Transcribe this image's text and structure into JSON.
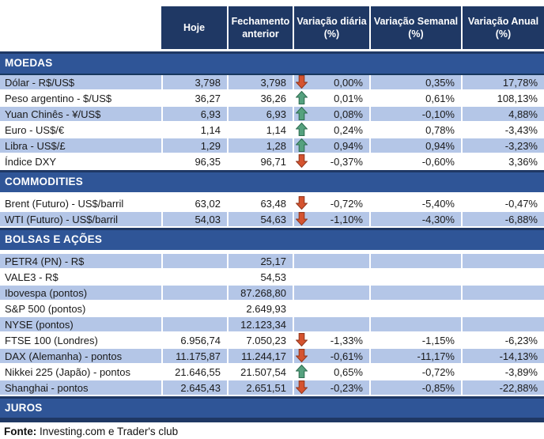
{
  "table": {
    "columns": [
      "Hoje",
      "Fechamento anterior",
      "Variação diária (%)",
      "Variação Semanal (%)",
      "Variação Anual (%)"
    ]
  },
  "colors": {
    "header_bg": "#1F3864",
    "section_band_bg": "#2F5597",
    "shaded_row_bg": "#B4C6E7",
    "up_arrow": "#55A17E",
    "down_arrow": "#D5532F"
  },
  "sections": [
    {
      "title": "MOEDAS",
      "first_row_shaded": true,
      "rows": [
        {
          "label": "Dólar - R$/US$",
          "hoje": "3,798",
          "fechamento": "3,798",
          "trend": "down",
          "diaria": "0,00%",
          "semanal": "0,35%",
          "anual": "17,78%"
        },
        {
          "label": "Peso argentino - $/US$",
          "hoje": "36,27",
          "fechamento": "36,26",
          "trend": "up",
          "diaria": "0,01%",
          "semanal": "0,61%",
          "anual": "108,13%"
        },
        {
          "label": "Yuan Chinês - ¥/US$",
          "hoje": "6,93",
          "fechamento": "6,93",
          "trend": "up",
          "diaria": "0,08%",
          "semanal": "-0,10%",
          "anual": "4,88%"
        },
        {
          "label": "Euro - US$/€",
          "hoje": "1,14",
          "fechamento": "1,14",
          "trend": "up",
          "diaria": "0,24%",
          "semanal": "0,78%",
          "anual": "-3,43%"
        },
        {
          "label": "Libra - US$/£",
          "hoje": "1,29",
          "fechamento": "1,28",
          "trend": "up",
          "diaria": "0,94%",
          "semanal": "0,94%",
          "anual": "-3,23%"
        },
        {
          "label": "Índice DXY",
          "hoje": "96,35",
          "fechamento": "96,71",
          "trend": "down",
          "diaria": "-0,37%",
          "semanal": "-0,60%",
          "anual": "3,36%"
        }
      ]
    },
    {
      "title": "COMMODITIES",
      "first_row_shaded": false,
      "rows": [
        {
          "label": "Brent (Futuro) - US$/barril",
          "hoje": "63,02",
          "fechamento": "63,48",
          "trend": "down",
          "diaria": "-0,72%",
          "semanal": "-5,40%",
          "anual": "-0,47%"
        },
        {
          "label": "WTI (Futuro) - US$/barril",
          "hoje": "54,03",
          "fechamento": "54,63",
          "trend": "down",
          "diaria": "-1,10%",
          "semanal": "-4,30%",
          "anual": "-6,88%"
        }
      ]
    },
    {
      "title": "BOLSAS E AÇÕES",
      "first_row_shaded": true,
      "rows": [
        {
          "label": "PETR4 (PN) - R$",
          "hoje": "",
          "fechamento": "25,17",
          "trend": "",
          "diaria": "",
          "semanal": "",
          "anual": ""
        },
        {
          "label": "VALE3 - R$",
          "hoje": "",
          "fechamento": "54,53",
          "trend": "",
          "diaria": "",
          "semanal": "",
          "anual": ""
        },
        {
          "label": "Ibovespa (pontos)",
          "hoje": "",
          "fechamento": "87.268,80",
          "trend": "",
          "diaria": "",
          "semanal": "",
          "anual": ""
        },
        {
          "label": "S&P 500 (pontos)",
          "hoje": "",
          "fechamento": "2.649,93",
          "trend": "",
          "diaria": "",
          "semanal": "",
          "anual": ""
        },
        {
          "label": "NYSE (pontos)",
          "hoje": "",
          "fechamento": "12.123,34",
          "trend": "",
          "diaria": "",
          "semanal": "",
          "anual": ""
        },
        {
          "label": "FTSE 100 (Londres)",
          "hoje": "6.956,74",
          "fechamento": "7.050,23",
          "trend": "down",
          "diaria": "-1,33%",
          "semanal": "-1,15%",
          "anual": "-6,23%"
        },
        {
          "label": "DAX (Alemanha) - pontos",
          "hoje": "11.175,87",
          "fechamento": "11.244,17",
          "trend": "down",
          "diaria": "-0,61%",
          "semanal": "-11,17%",
          "anual": "-14,13%"
        },
        {
          "label": "Nikkei 225 (Japão) - pontos",
          "hoje": "21.646,55",
          "fechamento": "21.507,54",
          "trend": "up",
          "diaria": "0,65%",
          "semanal": "-0,72%",
          "anual": "-3,89%"
        },
        {
          "label": "Shanghai - pontos",
          "hoje": "2.645,43",
          "fechamento": "2.651,51",
          "trend": "down",
          "diaria": "-0,23%",
          "semanal": "-0,85%",
          "anual": "-22,88%"
        }
      ]
    },
    {
      "title": "JUROS",
      "first_row_shaded": true,
      "rows": []
    }
  ],
  "footer": {
    "fonte_label": "Fonte:",
    "fonte_text": " Investing.com e Trader's club"
  }
}
